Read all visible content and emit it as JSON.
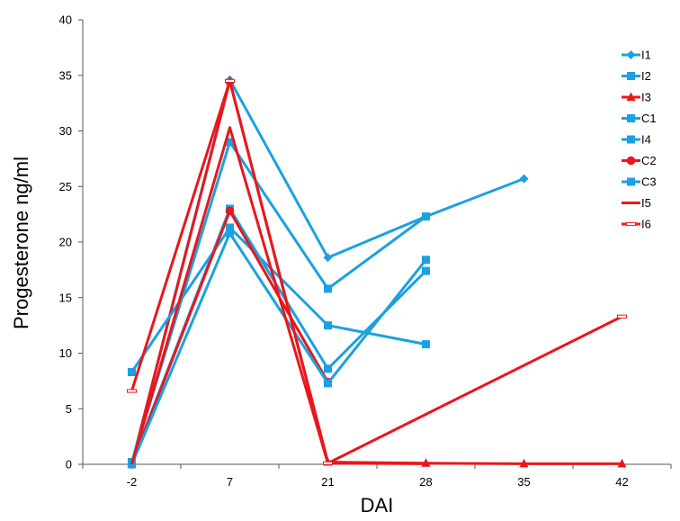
{
  "chart_data": {
    "type": "line",
    "title": "",
    "xlabel": "DAI",
    "ylabel": "Progesterone ng/ml",
    "categories": [
      "-2",
      "7",
      "21",
      "28",
      "35",
      "42"
    ],
    "ylim": [
      0,
      40
    ],
    "yticks": [
      0,
      5,
      10,
      15,
      20,
      25,
      30,
      35,
      40
    ],
    "grid": false,
    "legend_position": "right",
    "series": [
      {
        "name": "I1",
        "color": "#1ba1e2",
        "marker": "diamond",
        "values": [
          0,
          34.6,
          18.6,
          22.3,
          25.7,
          null
        ]
      },
      {
        "name": "I2",
        "color": "#1ba1e2",
        "marker": "square",
        "values": [
          0.1,
          23.0,
          8.6,
          17.4,
          null,
          null
        ]
      },
      {
        "name": "I3",
        "color": "#e8171c",
        "marker": "triangle",
        "values": [
          0,
          34.5,
          0.2,
          0.1,
          0.05,
          0.05
        ]
      },
      {
        "name": "C1",
        "color": "#1ba1e2",
        "marker": "square",
        "values": [
          8.3,
          21.3,
          12.5,
          10.8,
          null,
          null
        ]
      },
      {
        "name": "I4",
        "color": "#1ba1e2",
        "marker": "square",
        "values": [
          0.2,
          29.0,
          15.8,
          22.3,
          null,
          null
        ]
      },
      {
        "name": "C2",
        "color": "#e8171c",
        "marker": "circle",
        "values": [
          0,
          22.8,
          7.4,
          null,
          null,
          null
        ]
      },
      {
        "name": "C3",
        "color": "#1ba1e2",
        "marker": "square",
        "values": [
          0,
          20.8,
          7.3,
          18.4,
          null,
          null
        ]
      },
      {
        "name": "I5",
        "color": "#e8171c",
        "marker": "none",
        "values": [
          0,
          30.3,
          0.1,
          0.05,
          null,
          null
        ]
      },
      {
        "name": "I6",
        "color": "#e8171c",
        "marker": "dash",
        "values": [
          6.6,
          34.5,
          0.1,
          null,
          null,
          13.3
        ]
      }
    ]
  }
}
